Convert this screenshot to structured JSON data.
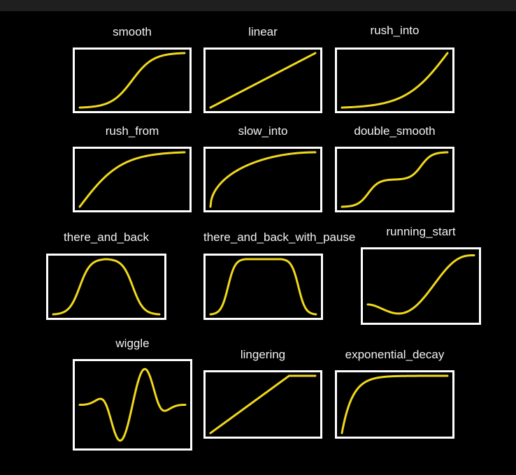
{
  "figure": {
    "background": "#000000",
    "frame_color": "#ffffff",
    "curve_color": "#f0d81c",
    "panels": [
      {
        "label": "smooth",
        "function": "smooth"
      },
      {
        "label": "linear",
        "function": "linear"
      },
      {
        "label": "rush_into",
        "function": "rush_into"
      },
      {
        "label": "rush_from",
        "function": "rush_from"
      },
      {
        "label": "slow_into",
        "function": "slow_into"
      },
      {
        "label": "double_smooth",
        "function": "double_smooth"
      },
      {
        "label": "there_and_back",
        "function": "there_and_back"
      },
      {
        "label": "there_and_back_with_pause",
        "function": "there_and_back_with_pause"
      },
      {
        "label": "running_start",
        "function": "running_start"
      },
      {
        "label": "wiggle",
        "function": "wiggle"
      },
      {
        "label": "lingering",
        "function": "lingering"
      },
      {
        "label": "exponential_decay",
        "function": "exponential_decay"
      }
    ]
  }
}
